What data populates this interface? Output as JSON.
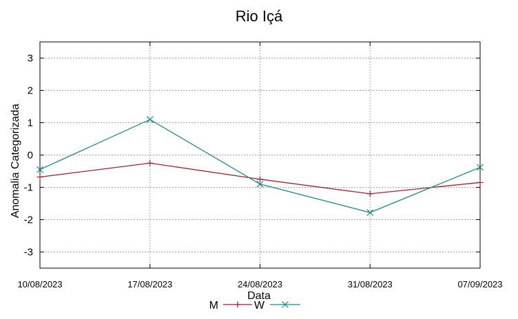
{
  "chart_data": {
    "type": "line",
    "title": "Rio Içá",
    "xlabel": "Data",
    "ylabel": "Anomalia Categorizada",
    "ylim": [
      -3.5,
      3.5
    ],
    "yticks": [
      3,
      2,
      1,
      0,
      -1,
      -2,
      -3
    ],
    "categories": [
      "10/08/2023",
      "17/08/2023",
      "24/08/2023",
      "31/08/2023",
      "07/09/2023"
    ],
    "grid": true,
    "legend_position": "bottom-center",
    "series": [
      {
        "name": "M",
        "color": "#a0202a",
        "marker": "plus",
        "values": [
          -0.68,
          -0.25,
          -0.75,
          -1.2,
          -0.85
        ]
      },
      {
        "name": "W",
        "color": "#1e8a8a",
        "marker": "cross",
        "values": [
          -0.45,
          1.1,
          -0.9,
          -1.78,
          -0.38
        ]
      }
    ]
  }
}
